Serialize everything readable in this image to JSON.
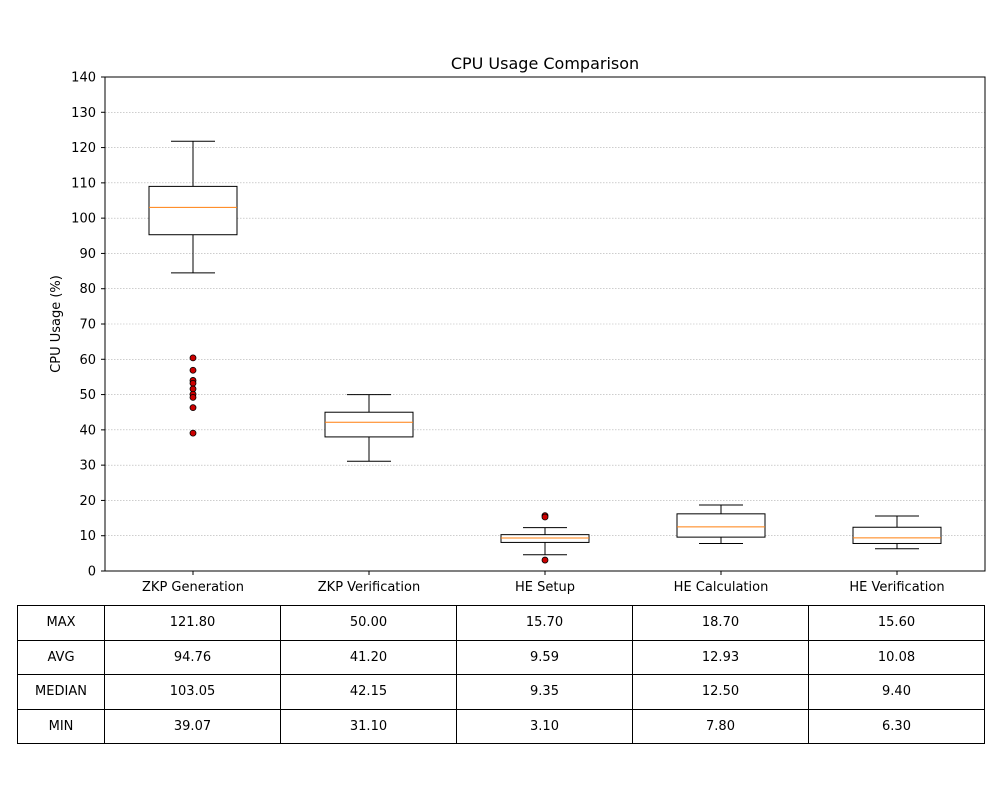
{
  "chart_data": {
    "type": "box",
    "title": "CPU Usage Comparison",
    "xlabel": "",
    "ylabel": "CPU Usage (%)",
    "ylim": [
      0,
      140
    ],
    "yticks": [
      "0",
      "10",
      "20",
      "30",
      "40",
      "50",
      "60",
      "70",
      "80",
      "90",
      "100",
      "110",
      "120",
      "130",
      "140"
    ],
    "grid": "y-dotted",
    "categories": [
      "ZKP Generation",
      "ZKP Verification",
      "HE Setup",
      "HE Calculation",
      "HE Verification"
    ],
    "boxes": [
      {
        "whisker_low": 84.5,
        "q1": 95.3,
        "median": 103.05,
        "q3": 109.0,
        "whisker_high": 121.8,
        "outliers": [
          60.4,
          56.9,
          54.0,
          53.2,
          51.6,
          50.1,
          49.2,
          46.3,
          39.07
        ]
      },
      {
        "whisker_low": 31.1,
        "q1": 38.0,
        "median": 42.15,
        "q3": 45.0,
        "whisker_high": 50.0,
        "outliers": []
      },
      {
        "whisker_low": 4.6,
        "q1": 8.1,
        "median": 9.35,
        "q3": 10.3,
        "whisker_high": 12.3,
        "outliers": [
          15.7,
          15.3,
          3.1
        ]
      },
      {
        "whisker_low": 7.8,
        "q1": 9.6,
        "median": 12.5,
        "q3": 16.2,
        "whisker_high": 18.7,
        "outliers": []
      },
      {
        "whisker_low": 6.3,
        "q1": 7.8,
        "median": 9.4,
        "q3": 12.4,
        "whisker_high": 15.6,
        "outliers": []
      }
    ],
    "colors": {
      "box": "#000000",
      "median": "#ff7f0e",
      "outlier_fill": "#cc0000",
      "grid": "#b0b0b0"
    }
  },
  "table": {
    "rows": [
      {
        "label": "MAX",
        "values": [
          "121.80",
          "50.00",
          "15.70",
          "18.70",
          "15.60"
        ]
      },
      {
        "label": "AVG",
        "values": [
          "94.76",
          "41.20",
          "9.59",
          "12.93",
          "10.08"
        ]
      },
      {
        "label": "MEDIAN",
        "values": [
          "103.05",
          "42.15",
          "9.35",
          "12.50",
          "9.40"
        ]
      },
      {
        "label": "MIN",
        "values": [
          "39.07",
          "31.10",
          "3.10",
          "7.80",
          "6.30"
        ]
      }
    ]
  }
}
